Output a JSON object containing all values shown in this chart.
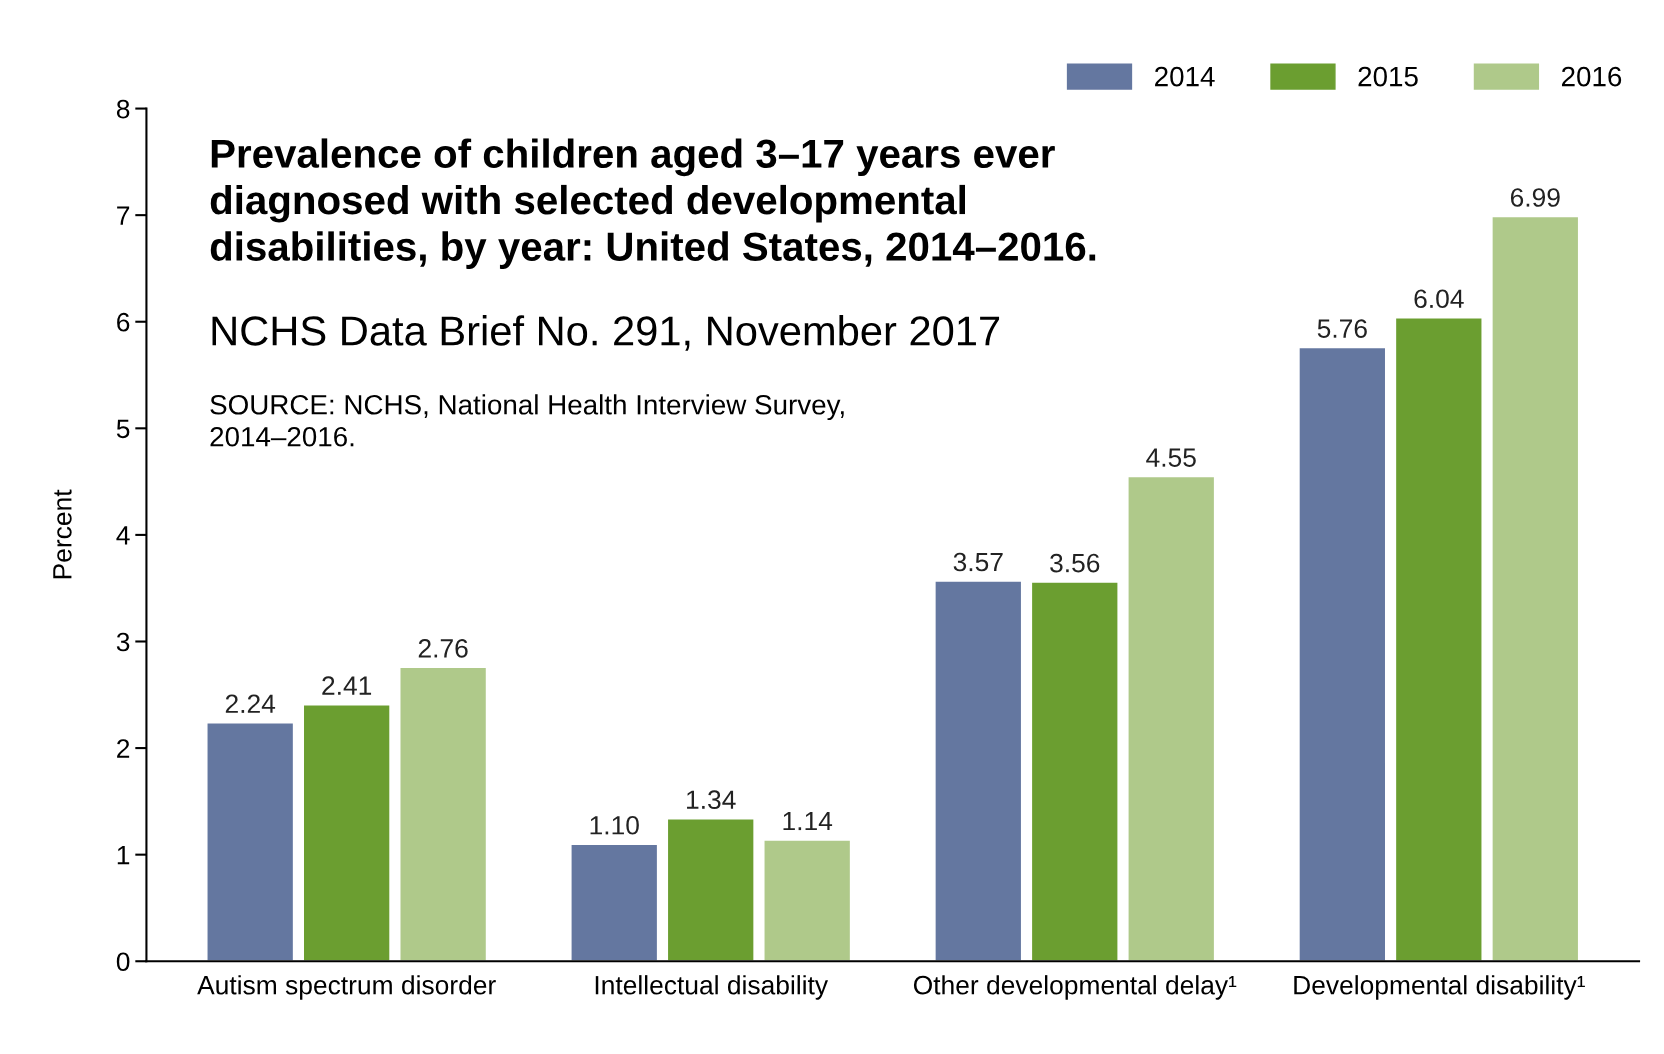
{
  "chart_data": {
    "type": "bar",
    "title": "Prevalence of children aged 3–17 years ever diagnosed with selected developmental disabilities, by year: United States, 2014–2016.",
    "subtitle": "NCHS Data Brief No. 291, November 2017",
    "annotations": [
      "SOURCE: NCHS, National Health Interview Survey, 2014–2016."
    ],
    "ylabel": "Percent",
    "categories": [
      "Autism spectrum disorder",
      "Intellectual disability",
      "Other developmental delay¹",
      "Developmental disability¹"
    ],
    "series": [
      {
        "name": "2014",
        "color": "#6477a0",
        "values": [
          2.24,
          1.1,
          3.57,
          5.76
        ],
        "value_labels": [
          "2.24",
          "1.10",
          "3.57",
          "5.76"
        ]
      },
      {
        "name": "2015",
        "color": "#6b9e30",
        "values": [
          2.41,
          1.34,
          3.56,
          6.04
        ]
      },
      {
        "name": "2016",
        "color": "#afc98a",
        "values": [
          2.76,
          1.14,
          4.55,
          6.99
        ]
      }
    ],
    "ylim": [
      0,
      8
    ],
    "yticks": [
      0,
      1,
      2,
      3,
      4,
      5,
      6,
      7,
      8
    ],
    "data_labels": true,
    "grid": false,
    "legend": "top right"
  }
}
